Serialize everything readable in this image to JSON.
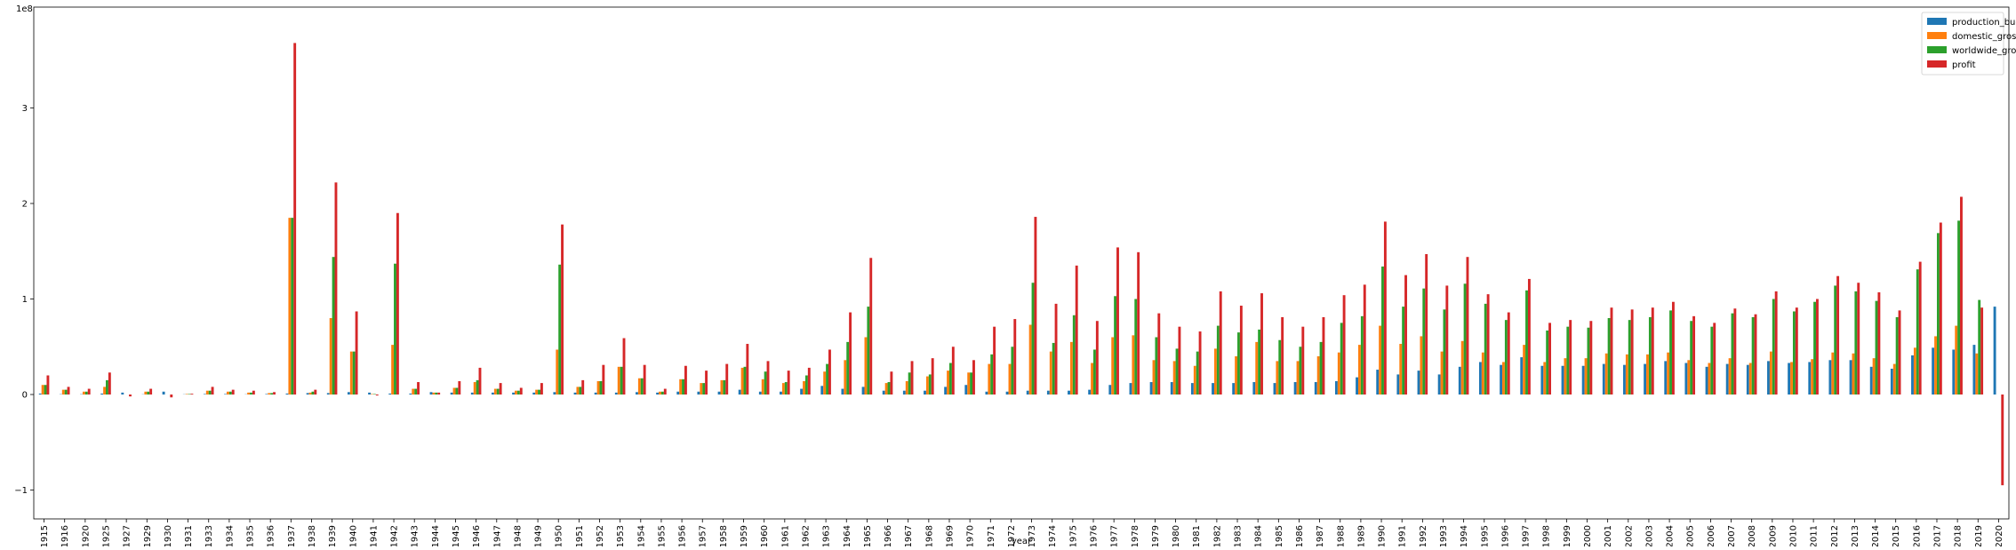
{
  "chart_data": {
    "type": "bar",
    "xlabel": "year",
    "ylabel": "",
    "offset_text": "1e8",
    "ylim": [
      -1.3,
      3.95
    ],
    "yticks": [
      -1,
      0,
      1,
      2,
      3
    ],
    "ytick_labels": [
      "−1",
      "0",
      "1",
      "2",
      "3"
    ],
    "grid": false,
    "legend_position": "top-right",
    "categories": [
      "1915",
      "1916",
      "1920",
      "1925",
      "1927",
      "1929",
      "1930",
      "1931",
      "1933",
      "1934",
      "1935",
      "1936",
      "1937",
      "1938",
      "1939",
      "1940",
      "1941",
      "1942",
      "1943",
      "1944",
      "1945",
      "1946",
      "1947",
      "1948",
      "1949",
      "1950",
      "1951",
      "1952",
      "1953",
      "1954",
      "1955",
      "1956",
      "1957",
      "1958",
      "1959",
      "1960",
      "1961",
      "1962",
      "1963",
      "1964",
      "1965",
      "1966",
      "1967",
      "1968",
      "1969",
      "1970",
      "1971",
      "1972",
      "1973",
      "1974",
      "1975",
      "1976",
      "1977",
      "1978",
      "1979",
      "1980",
      "1981",
      "1982",
      "1983",
      "1984",
      "1985",
      "1986",
      "1987",
      "1988",
      "1989",
      "1990",
      "1991",
      "1992",
      "1993",
      "1994",
      "1995",
      "1996",
      "1997",
      "1998",
      "1999",
      "2000",
      "2001",
      "2002",
      "2003",
      "2004",
      "2005",
      "2006",
      "2007",
      "2008",
      "2009",
      "2010",
      "2011",
      "2012",
      "2013",
      "2014",
      "2015",
      "2016",
      "2017",
      "2018",
      "2019",
      "2020"
    ],
    "series": [
      {
        "name": "production_budget",
        "color": "#1f77b4",
        "values": [
          0.01,
          0.003,
          0.003,
          0.01,
          0.02,
          0.002,
          0.03,
          0.002,
          0.005,
          0.005,
          0.002,
          0.005,
          0.01,
          0.015,
          0.015,
          0.025,
          0.02,
          0.01,
          0.01,
          0.025,
          0.02,
          0.02,
          0.02,
          0.02,
          0.02,
          0.025,
          0.02,
          0.02,
          0.02,
          0.025,
          0.02,
          0.03,
          0.03,
          0.03,
          0.05,
          0.03,
          0.03,
          0.06,
          0.09,
          0.06,
          0.08,
          0.04,
          0.04,
          0.04,
          0.08,
          0.1,
          0.03,
          0.03,
          0.04,
          0.04,
          0.04,
          0.05,
          0.1,
          0.12,
          0.13,
          0.13,
          0.12,
          0.12,
          0.12,
          0.13,
          0.12,
          0.13,
          0.13,
          0.14,
          0.18,
          0.26,
          0.21,
          0.25,
          0.21,
          0.29,
          0.34,
          0.31,
          0.39,
          0.3,
          0.3,
          0.3,
          0.32,
          0.31,
          0.32,
          0.35,
          0.33,
          0.29,
          0.32,
          0.31,
          0.35,
          0.33,
          0.34,
          0.36,
          0.36,
          0.29,
          0.27,
          0.41,
          0.49,
          0.47,
          0.52,
          0.92
        ]
      },
      {
        "name": "domestic_gross",
        "color": "#ff7f0e",
        "values": [
          0.1,
          0.05,
          0.03,
          0.08,
          0,
          0.03,
          0,
          0.005,
          0.04,
          0.03,
          0.02,
          0.015,
          1.85,
          0.02,
          0.8,
          0.45,
          0.005,
          0.52,
          0.06,
          0.02,
          0.07,
          0.13,
          0.06,
          0.04,
          0.05,
          0.47,
          0.08,
          0.14,
          0.29,
          0.17,
          0.03,
          0.16,
          0.12,
          0.15,
          0.28,
          0.16,
          0.12,
          0.14,
          0.24,
          0.36,
          0.6,
          0.12,
          0.14,
          0.19,
          0.25,
          0.23,
          0.32,
          0.32,
          0.73,
          0.45,
          0.55,
          0.33,
          0.6,
          0.62,
          0.36,
          0.35,
          0.3,
          0.48,
          0.4,
          0.55,
          0.35,
          0.35,
          0.4,
          0.44,
          0.52,
          0.72,
          0.53,
          0.61,
          0.45,
          0.56,
          0.44,
          0.34,
          0.52,
          0.34,
          0.38,
          0.38,
          0.43,
          0.42,
          0.42,
          0.44,
          0.36,
          0.33,
          0.38,
          0.33,
          0.45,
          0.34,
          0.37,
          0.44,
          0.43,
          0.38,
          0.32,
          0.49,
          0.61,
          0.72,
          0.43,
          0
        ]
      },
      {
        "name": "worldwide_gross",
        "color": "#2ca02c",
        "values": [
          0.1,
          0.05,
          0.03,
          0.15,
          0,
          0.03,
          0,
          0.005,
          0.04,
          0.03,
          0.02,
          0.015,
          1.85,
          0.03,
          1.44,
          0.45,
          0.005,
          1.37,
          0.06,
          0.02,
          0.07,
          0.15,
          0.06,
          0.04,
          0.05,
          1.36,
          0.08,
          0.14,
          0.29,
          0.17,
          0.03,
          0.16,
          0.12,
          0.15,
          0.29,
          0.24,
          0.13,
          0.2,
          0.32,
          0.55,
          0.92,
          0.13,
          0.23,
          0.21,
          0.33,
          0.23,
          0.42,
          0.5,
          1.17,
          0.54,
          0.83,
          0.47,
          1.03,
          1.0,
          0.6,
          0.48,
          0.45,
          0.72,
          0.65,
          0.68,
          0.57,
          0.5,
          0.55,
          0.75,
          0.82,
          1.34,
          0.92,
          1.11,
          0.89,
          1.16,
          0.95,
          0.78,
          1.09,
          0.67,
          0.71,
          0.7,
          0.8,
          0.78,
          0.81,
          0.88,
          0.77,
          0.71,
          0.85,
          0.81,
          1.0,
          0.87,
          0.97,
          1.14,
          1.08,
          0.98,
          0.81,
          1.31,
          1.69,
          1.82,
          0.99,
          0
        ]
      },
      {
        "name": "profit",
        "color": "#d62728",
        "values": [
          0.2,
          0.08,
          0.06,
          0.23,
          -0.02,
          0.06,
          -0.03,
          0.008,
          0.08,
          0.05,
          0.04,
          0.025,
          3.68,
          0.05,
          2.22,
          0.87,
          -0.01,
          1.9,
          0.13,
          0.02,
          0.14,
          0.28,
          0.12,
          0.07,
          0.12,
          1.78,
          0.15,
          0.31,
          0.59,
          0.31,
          0.06,
          0.3,
          0.25,
          0.32,
          0.53,
          0.35,
          0.25,
          0.28,
          0.47,
          0.86,
          1.43,
          0.24,
          0.35,
          0.38,
          0.5,
          0.36,
          0.71,
          0.79,
          1.86,
          0.95,
          1.35,
          0.77,
          1.54,
          1.49,
          0.85,
          0.71,
          0.66,
          1.08,
          0.93,
          1.06,
          0.81,
          0.71,
          0.81,
          1.04,
          1.15,
          1.81,
          1.25,
          1.47,
          1.14,
          1.44,
          1.05,
          0.86,
          1.21,
          0.75,
          0.78,
          0.77,
          0.91,
          0.89,
          0.91,
          0.97,
          0.82,
          0.75,
          0.9,
          0.84,
          1.08,
          0.91,
          1.0,
          1.24,
          1.17,
          1.07,
          0.88,
          1.39,
          1.8,
          2.07,
          0.91,
          -0.95
        ]
      }
    ]
  }
}
